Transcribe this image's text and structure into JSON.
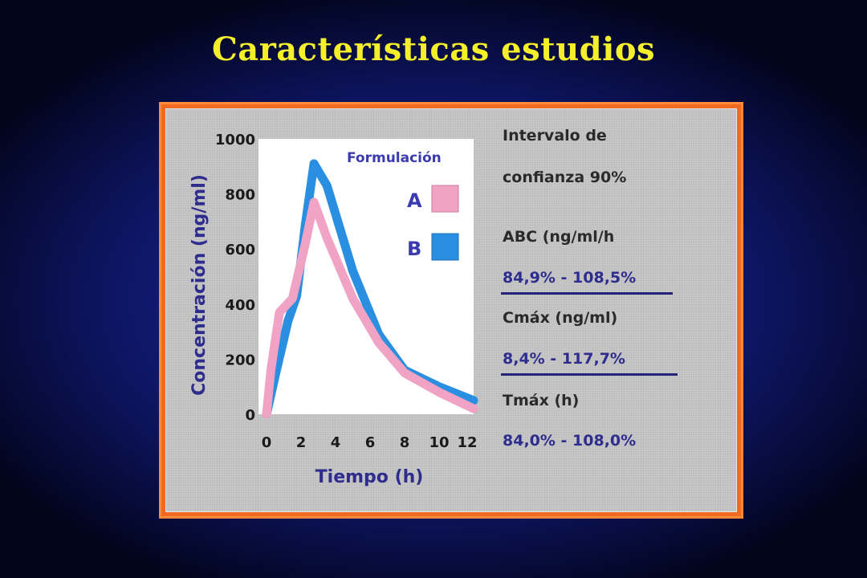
{
  "title": "Características estudios",
  "colors": {
    "title": "#f5ee2a",
    "frame": "#f06a22",
    "panel": "#c8c8c8",
    "series_A": "#f0a3c4",
    "series_B": "#2a8fe0",
    "text_blue": "#2e2d8e"
  },
  "side_panel": {
    "heading_line1": "Intervalo de",
    "heading_line2": "confianza 90%",
    "abc_label": "ABC (ng/ml/h",
    "abc_value": "84,9% - 108,5%",
    "cmax_label": "Cmáx (ng/ml)",
    "cmax_value": "8,4% - 117,7%",
    "tmax_label": "Tmáx (h)",
    "tmax_value": "84,0% - 108,0%"
  },
  "chart_data": {
    "type": "line",
    "title": "",
    "xlabel": "Tiempo (h)",
    "ylabel": "Concentración (ng/ml)",
    "xlim": [
      0,
      12
    ],
    "ylim": [
      0,
      1000
    ],
    "x_ticks": [
      "0",
      "2",
      "4",
      "6",
      "8",
      "10",
      "12"
    ],
    "y_ticks": [
      "0",
      "200",
      "400",
      "600",
      "800",
      "1000"
    ],
    "legend_title": "Formulación",
    "legend_position": "top-right",
    "series": [
      {
        "name": "A",
        "color": "#f0a3c4",
        "x": [
          0,
          0.25,
          0.75,
          1.5,
          2.25,
          2.75,
          3.5,
          5,
          6.5,
          8,
          10,
          12
        ],
        "y": [
          0,
          160,
          370,
          420,
          620,
          770,
          640,
          420,
          260,
          150,
          80,
          20
        ]
      },
      {
        "name": "B",
        "color": "#2a8fe0",
        "x": [
          0,
          0.5,
          1.25,
          1.75,
          2.25,
          2.75,
          3.5,
          5,
          6.5,
          8,
          10,
          12
        ],
        "y": [
          0,
          140,
          340,
          430,
          690,
          910,
          830,
          520,
          290,
          160,
          100,
          50
        ]
      }
    ]
  }
}
